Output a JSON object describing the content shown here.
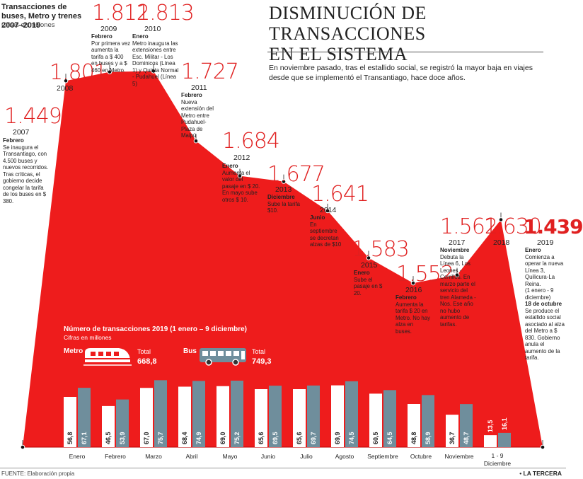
{
  "header": {
    "subhead": "Transacciones de buses, Metro y trenes 2007–2019",
    "unit": "Cifras en millones",
    "headline_1": "DISMINUCIÓN DE TRANSACCIONES",
    "headline_2": "EN EL SISTEMA",
    "intro": "En noviembre pasado, tras el estallido social, se registró la mayor baja en viajes desde que se implementó el Transantiago, hace doce años."
  },
  "colors": {
    "area": "#ee1c1c",
    "metro_bar": "#ffffff",
    "bus_bar": "#6f8e9c",
    "accent": "#e02020"
  },
  "events": [
    {
      "year": "2007",
      "value": "1.449",
      "title": "Febrero",
      "text": "Se inaugura el Transantiago, con 4.500 buses y nuevos recorridos. Tras críticas, el gobierno decide congelar la tarifa de los buses en $ 380."
    },
    {
      "year": "2008",
      "value": "1.801",
      "title": "",
      "text": ""
    },
    {
      "year": "2009",
      "value": "1.812",
      "title": "Febrero",
      "text": "Por primera vez aumenta la tarifa a $ 400 en buses y a $ 460 en Metro."
    },
    {
      "year": "2010",
      "value": "1.813",
      "title": "Enero",
      "text": "Metro inaugura las extensiones entre Esc. Militar - Los Dominicos (Línea 1) y Quinta Normal - Pudahuel (Línea 5)"
    },
    {
      "year": "2011",
      "value": "1.727",
      "title": "Febrero",
      "text": "Nueva extensión del Metro entre Pudahuel-Plaza de Maipú"
    },
    {
      "year": "2012",
      "value": "1.684",
      "title": "Enero",
      "text": "Aumenta el valor del pasaje en $ 20. En mayo sube otros $ 10."
    },
    {
      "year": "2013",
      "value": "1.677",
      "title": "Diciembre",
      "text": "Sube la tarifa $10."
    },
    {
      "year": "2014",
      "value": "1.641",
      "title": "Junio",
      "text": "En septiembre se decretan alzas de $10"
    },
    {
      "year": "2015",
      "value": "1.583",
      "title": "Enero",
      "text": "Sube el pasaje en $ 20."
    },
    {
      "year": "2016",
      "value": "1.552",
      "title": "Febrero",
      "text": "Aumenta la tarifa $ 20 en Metro. No hay alza en buses."
    },
    {
      "year": "2017",
      "value": "1.562",
      "title": "Noviembre",
      "text": "Debuta la Línea 6, Los Leones - Cerrillos. En marzo parte el servicio del tren Alameda - Nos. Ese año no hubo aumento de tarifas."
    },
    {
      "year": "2018",
      "value": "1.630",
      "title": "",
      "text": ""
    },
    {
      "year": "2019",
      "value": "1.439",
      "title": "Enero",
      "text": "Comienza a operar la nueva Línea 3, Quilicura-La Reina.",
      "note": "(1 enero - 9 diciembre)",
      "title2": "18 de octubre",
      "text2": "Se produce el estallido social asociado al alza del Metro a $ 830. Gobierno anula el aumento de la tarifa."
    }
  ],
  "inset": {
    "title": "Número de transacciones 2019 (1 enero – 9 diciembre)",
    "unit": "Cifras en millones",
    "metro_label": "Metro",
    "bus_label": "Bus",
    "total_label": "Total",
    "metro_total": "668,8",
    "bus_total": "749,3"
  },
  "chart_data": [
    {
      "type": "area",
      "title": "Transacciones de buses, Metro y trenes 2007–2019",
      "ylabel": "Cifras en millones",
      "x": [
        "2007",
        "2008",
        "2009",
        "2010",
        "2011",
        "2012",
        "2013",
        "2014",
        "2015",
        "2016",
        "2017",
        "2018",
        "2019"
      ],
      "values": [
        1449,
        1801,
        1812,
        1813,
        1727,
        1684,
        1677,
        1641,
        1583,
        1552,
        1562,
        1630,
        1439
      ]
    },
    {
      "type": "bar",
      "title": "Número de transacciones 2019 (1 enero – 9 diciembre)",
      "ylabel": "Cifras en millones",
      "categories": [
        "Enero",
        "Febrero",
        "Marzo",
        "Abril",
        "Mayo",
        "Junio",
        "Julio",
        "Agosto",
        "Septiembre",
        "Octubre",
        "Noviembre",
        "1 - 9 Diciembre"
      ],
      "series": [
        {
          "name": "Metro",
          "values": [
            56.8,
            46.5,
            67.0,
            68.4,
            69.0,
            65.6,
            65.6,
            69.9,
            60.5,
            48.8,
            36.7,
            13.5
          ],
          "labels": [
            "56,8",
            "46,5",
            "67,0",
            "68,4",
            "69,0",
            "65,6",
            "65,6",
            "69,9",
            "60,5",
            "48,8",
            "36,7",
            "13,5"
          ]
        },
        {
          "name": "Bus",
          "values": [
            67.1,
            53.9,
            75.7,
            74.9,
            75.2,
            69.5,
            69.7,
            74.5,
            64.5,
            58.9,
            48.7,
            16.1
          ],
          "labels": [
            "67,1",
            "53,9",
            "75,7",
            "74,9",
            "75,2",
            "69,5",
            "69,7",
            "74,5",
            "64,5",
            "58,9",
            "48,7",
            "16,1"
          ]
        }
      ]
    }
  ],
  "footer": {
    "source": "FUENTE: Elaboración propia",
    "brand": "• LA TERCERA"
  }
}
